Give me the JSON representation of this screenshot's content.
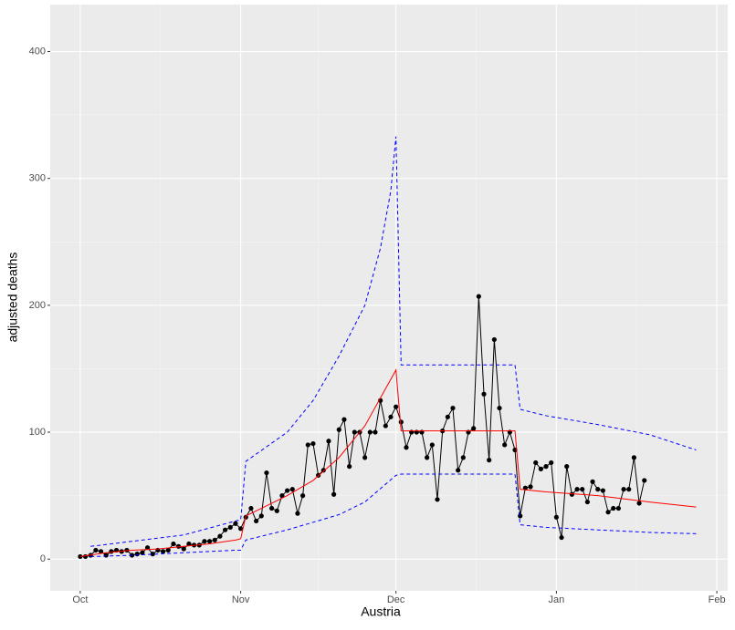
{
  "chart_data": {
    "type": "line",
    "x_label": "Austria",
    "y_label": "adjusted deaths",
    "xlim": [
      -5.8,
      125.1
    ],
    "ylim": [
      -25,
      437
    ],
    "xticks": [
      {
        "value": 0,
        "label": "Oct"
      },
      {
        "value": 31,
        "label": "Nov"
      },
      {
        "value": 61,
        "label": "Dec"
      },
      {
        "value": 92,
        "label": "Jan"
      },
      {
        "value": 123,
        "label": "Feb"
      }
    ],
    "yticks": [
      0,
      100,
      200,
      300,
      400
    ],
    "grid": true,
    "series": [
      {
        "color": "#000000",
        "style": "solid",
        "points": true,
        "x": [
          0,
          1,
          2,
          3,
          4,
          5,
          6,
          7,
          8,
          9,
          10,
          11,
          12,
          13,
          14,
          15,
          16,
          17,
          18,
          19,
          20,
          21,
          22,
          23,
          24,
          25,
          26,
          27,
          28,
          29,
          30,
          31,
          32,
          33,
          34,
          35,
          36,
          37,
          38,
          39,
          40,
          41,
          42,
          43,
          44,
          45,
          46,
          47,
          48,
          49,
          50,
          51,
          52,
          53,
          54,
          55,
          56,
          57,
          58,
          59,
          60,
          61,
          62,
          63,
          64,
          65,
          66,
          67,
          68,
          69,
          70,
          71,
          72,
          73,
          74,
          75,
          76,
          77,
          78,
          79,
          80,
          81,
          82,
          83,
          84,
          85,
          86,
          87,
          88,
          89,
          90,
          91,
          92,
          93,
          94,
          95,
          96,
          97,
          98,
          99,
          100,
          101,
          102,
          103,
          104,
          105,
          106,
          107,
          108,
          109
        ],
        "values": [
          2,
          2,
          3,
          7,
          6,
          3,
          6,
          7,
          6,
          7,
          3,
          4,
          5,
          9,
          4,
          7,
          6,
          7,
          12,
          10,
          8,
          12,
          11,
          11,
          14,
          14,
          15,
          18,
          23,
          25,
          28,
          24,
          33,
          40,
          30,
          34,
          68,
          40,
          38,
          50,
          54,
          55,
          36,
          50,
          90,
          91,
          66,
          70,
          93,
          51,
          102,
          110,
          73,
          100,
          100,
          80,
          100,
          100,
          125,
          105,
          112,
          120,
          108,
          88,
          100,
          100,
          100,
          80,
          90,
          47,
          101,
          112,
          119,
          70,
          80,
          100,
          103,
          207,
          130,
          78,
          173,
          119,
          90,
          100,
          86,
          34,
          56,
          57,
          76,
          71,
          73,
          76,
          33,
          17,
          73,
          51,
          55,
          55,
          45,
          61,
          55,
          54,
          37,
          40,
          40,
          55,
          55,
          80,
          44,
          62
        ]
      },
      {
        "color": "#ff0000",
        "style": "solid",
        "points": false,
        "x": [
          0,
          5,
          10,
          15,
          20,
          25,
          30,
          31,
          32,
          35,
          40,
          45,
          50,
          55,
          61,
          62,
          84,
          85,
          90,
          100,
          110,
          119
        ],
        "values": [
          2,
          5,
          7,
          8,
          10,
          12,
          15,
          16,
          34,
          40,
          50,
          62,
          80,
          105,
          149,
          101,
          101,
          55,
          53,
          50,
          45,
          41
        ]
      },
      {
        "color": "#0000ff",
        "style": "dashed",
        "points": false,
        "x": [
          2,
          10,
          20,
          30,
          31,
          32,
          40,
          45,
          50,
          55,
          58,
          60,
          61,
          62,
          84,
          85,
          90,
          100,
          110,
          119
        ],
        "values": [
          10,
          14,
          19,
          30,
          31,
          77,
          100,
          125,
          160,
          200,
          245,
          290,
          333,
          153,
          153,
          118,
          113,
          106,
          98,
          86
        ]
      },
      {
        "color": "#0000ff",
        "style": "dashed",
        "points": false,
        "x": [
          2,
          10,
          20,
          30,
          31,
          32,
          40,
          50,
          55,
          61,
          62,
          84,
          85,
          90,
          100,
          110,
          119
        ],
        "values": [
          2,
          3,
          5,
          7,
          7,
          15,
          23,
          35,
          45,
          66,
          67,
          67,
          27,
          25,
          23,
          21,
          20
        ]
      }
    ]
  }
}
